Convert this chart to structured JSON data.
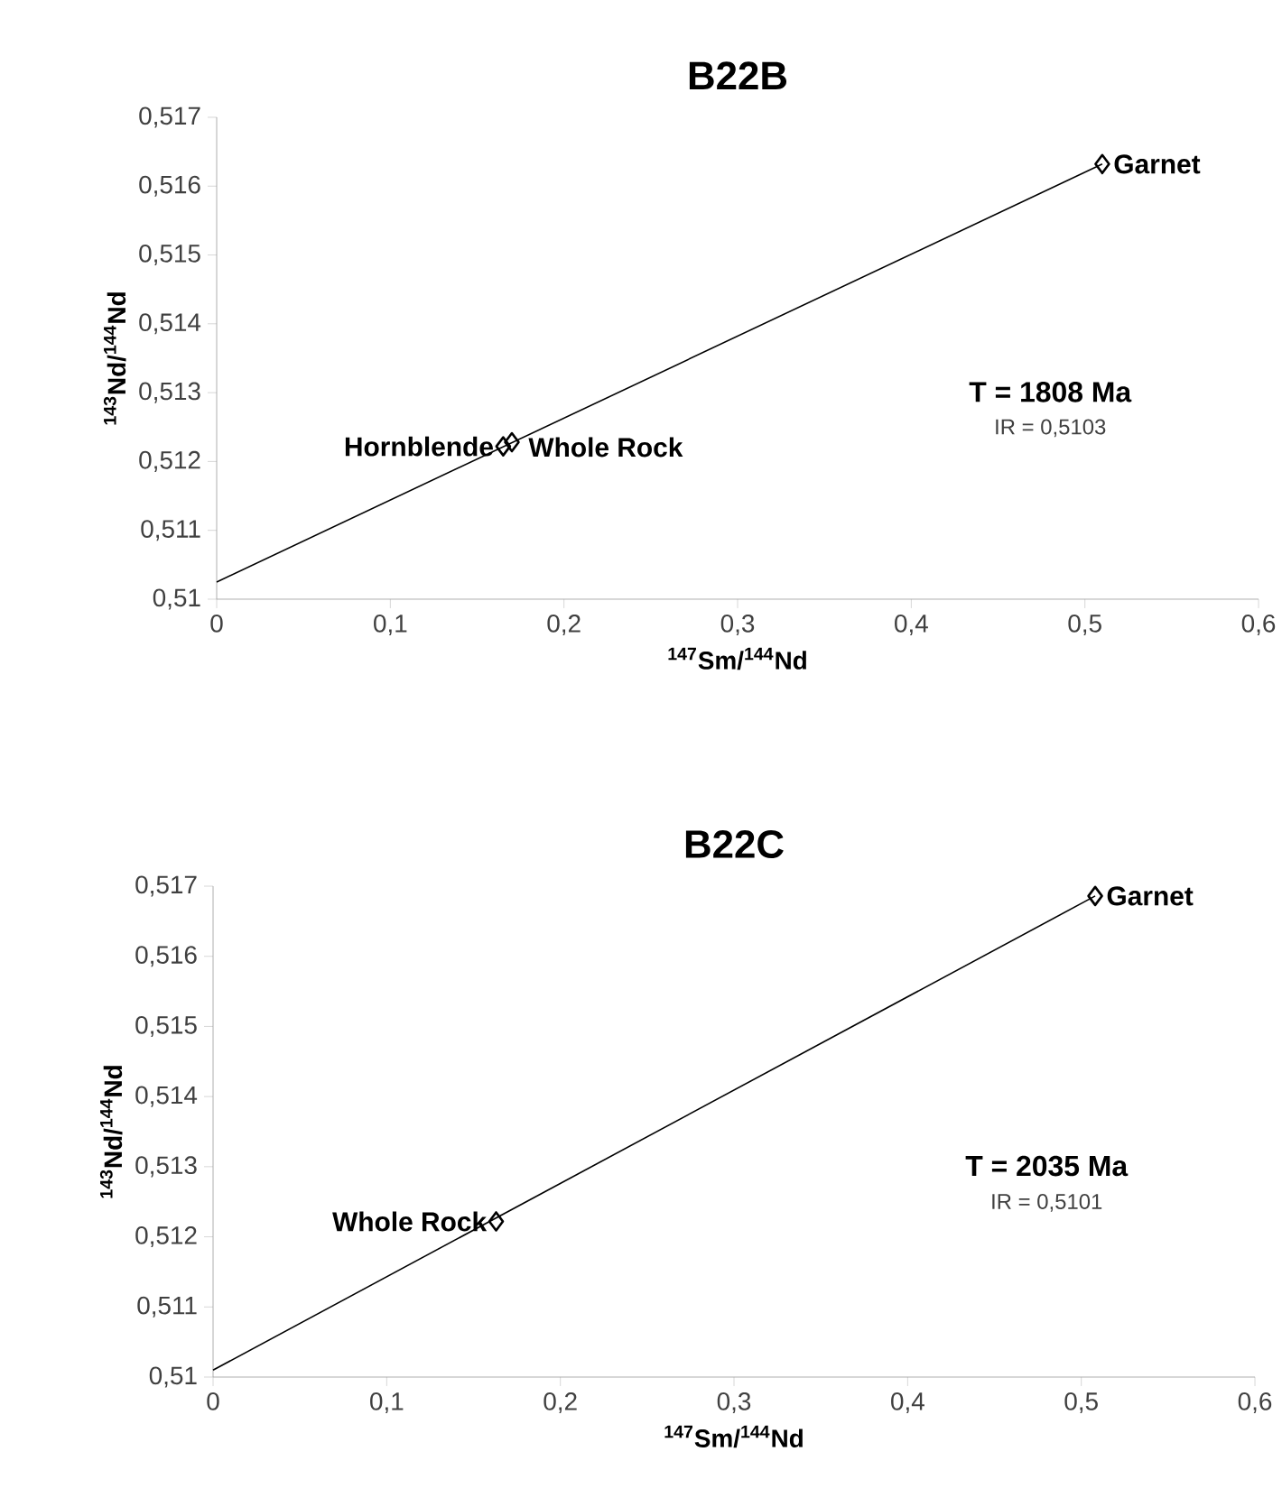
{
  "chart_data": [
    {
      "type": "scatter",
      "title": "B22B",
      "xlabel": "$^{147}$Sm/$^{144}$Nd",
      "ylabel": "$^{143}$Nd/$^{144}$Nd",
      "xlim": [
        0,
        0.6
      ],
      "ylim": [
        0.51,
        0.517
      ],
      "xticks": [
        0,
        {
          "value": 0.1,
          "label": "0,1"
        },
        {
          "value": 0.2,
          "label": "0,2"
        },
        {
          "value": 0.3,
          "label": "0,3"
        },
        {
          "value": 0.4,
          "label": "0,4"
        },
        {
          "value": 0.5,
          "label": "0,5"
        },
        {
          "value": 0.6,
          "label": "0,6"
        }
      ],
      "yticks": [
        {
          "value": 0.51,
          "label": "0,51"
        },
        {
          "value": 0.511,
          "label": "0,511"
        },
        {
          "value": 0.512,
          "label": "0,512"
        },
        {
          "value": 0.513,
          "label": "0,513"
        },
        {
          "value": 0.514,
          "label": "0,514"
        },
        {
          "value": 0.515,
          "label": "0,515"
        },
        {
          "value": 0.516,
          "label": "0,516"
        },
        {
          "value": 0.517,
          "label": "0,517"
        }
      ],
      "series": [
        {
          "color": "#000000",
          "marker": "diamond",
          "x": [
            0.165,
            0.17,
            0.51
          ],
          "values": [
            0.51222,
            0.51228,
            0.51632
          ]
        },
        {
          "type": "line",
          "color": "#000000",
          "x": [
            0,
            0.51
          ],
          "values": [
            0.51025,
            0.51632
          ]
        }
      ],
      "annotations": [
        {
          "text": "Hornblende",
          "x": 0.165,
          "y": 0.51222
        },
        {
          "text": "Whole Rock",
          "x": 0.17,
          "y": 0.51228
        },
        {
          "text": "Garnet",
          "x": 0.51,
          "y": 0.51632
        },
        "T = 1808 Ma",
        "IR = 0,5103"
      ]
    },
    {
      "type": "scatter",
      "title": "B22C",
      "xlabel": "$^{147}$Sm/$^{144}$Nd",
      "ylabel": "$^{143}$Nd/$^{144}$Nd",
      "xlim": [
        0,
        0.6
      ],
      "ylim": [
        0.51,
        0.517
      ],
      "xticks": [
        0,
        {
          "value": 0.1,
          "label": "0,1"
        },
        {
          "value": 0.2,
          "label": "0,2"
        },
        {
          "value": 0.3,
          "label": "0,3"
        },
        {
          "value": 0.4,
          "label": "0,4"
        },
        {
          "value": 0.5,
          "label": "0,5"
        },
        {
          "value": 0.6,
          "label": "0,6"
        }
      ],
      "yticks": [
        {
          "value": 0.51,
          "label": "0,51"
        },
        {
          "value": 0.511,
          "label": "0,511"
        },
        {
          "value": 0.512,
          "label": "0,512"
        },
        {
          "value": 0.513,
          "label": "0,513"
        },
        {
          "value": 0.514,
          "label": "0,514"
        },
        {
          "value": 0.515,
          "label": "0,515"
        },
        {
          "value": 0.516,
          "label": "0,516"
        },
        {
          "value": 0.517,
          "label": "0,517"
        }
      ],
      "series": [
        {
          "color": "#000000",
          "marker": "diamond",
          "x": [
            0.163,
            0.508
          ],
          "values": [
            0.51222,
            0.51686
          ]
        },
        {
          "type": "line",
          "color": "#000000",
          "x": [
            0,
            0.508
          ],
          "values": [
            0.5101,
            0.51686
          ]
        }
      ],
      "annotations": [
        {
          "text": "Whole Rock",
          "x": 0.163,
          "y": 0.51222
        },
        {
          "text": "Garnet",
          "x": 0.508,
          "y": 0.51686
        },
        "T = 2035 Ma",
        "IR = 0,5101"
      ]
    }
  ]
}
